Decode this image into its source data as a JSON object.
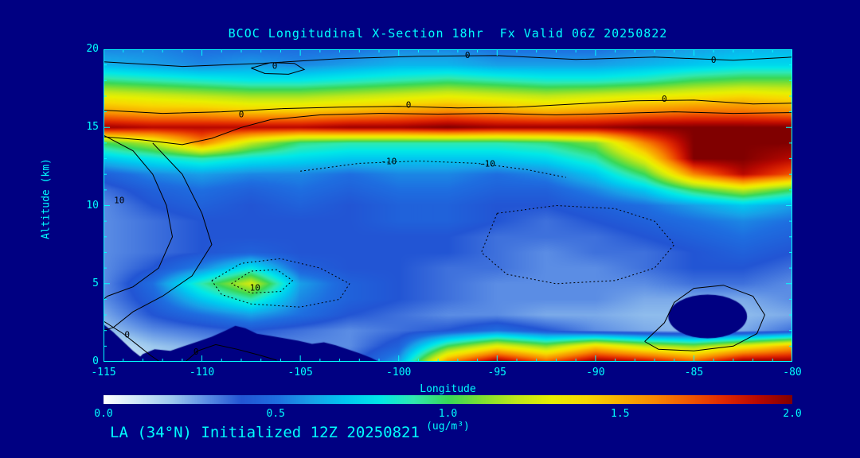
{
  "page": {
    "bg": "#000082",
    "fg": "#00ffff"
  },
  "title": "BCOC Longitudinal X-Section 18hr  Fx Valid 06Z 20250822",
  "caption": "LA (34°N) Initialized 12Z 20250821",
  "axes": {
    "x_label": "Longitude",
    "y_label": "Altitude (km)",
    "x_ticks": [
      -115,
      -110,
      -105,
      -100,
      -95,
      -90,
      -85,
      -80
    ],
    "y_ticks": [
      0,
      5,
      10,
      15,
      20
    ],
    "x_range": [
      -115,
      -80
    ],
    "y_range": [
      0,
      20
    ],
    "x_minor_step": 1,
    "y_minor_step": 1
  },
  "colorbar": {
    "ticks": [
      "0.0",
      "0.5",
      "1.0",
      "1.5",
      "2.0"
    ],
    "tick_values": [
      0,
      0.5,
      1.0,
      1.5,
      2.0
    ],
    "label": "(ug/m³)",
    "min": 0,
    "max": 2
  },
  "chart_data": {
    "type": "heatmap",
    "title": "BCOC Longitudinal X-Section 18hr  Fx Valid 06Z 20250822",
    "xlabel": "Longitude",
    "ylabel": "Altitude (km)",
    "units": "ug/m3",
    "x": [
      -115,
      -112.5,
      -110,
      -107.5,
      -105,
      -102.5,
      -100,
      -97.5,
      -95,
      -92.5,
      -90,
      -87.5,
      -85,
      -82.5,
      -80
    ],
    "y": [
      20,
      19,
      18,
      17,
      16,
      15,
      14,
      13,
      12,
      11,
      10,
      9,
      8,
      7,
      6,
      5,
      4,
      3,
      2,
      1,
      0
    ],
    "values": [
      [
        0.55,
        0.55,
        0.5,
        0.5,
        0.5,
        0.5,
        0.55,
        0.55,
        0.5,
        0.5,
        0.5,
        0.55,
        0.6,
        0.65,
        0.65
      ],
      [
        0.65,
        0.6,
        0.55,
        0.6,
        0.55,
        0.6,
        0.65,
        0.65,
        0.6,
        0.6,
        0.6,
        0.65,
        0.7,
        0.75,
        0.75
      ],
      [
        0.95,
        0.9,
        0.85,
        0.8,
        0.8,
        0.85,
        0.9,
        0.95,
        0.9,
        0.85,
        0.85,
        0.9,
        1.0,
        1.05,
        1.05
      ],
      [
        1.3,
        1.25,
        1.2,
        1.15,
        1.15,
        1.2,
        1.25,
        1.3,
        1.25,
        1.2,
        1.25,
        1.3,
        1.35,
        1.4,
        1.35
      ],
      [
        1.55,
        1.5,
        1.5,
        1.45,
        1.45,
        1.5,
        1.55,
        1.6,
        1.55,
        1.5,
        1.55,
        1.6,
        1.65,
        1.65,
        1.6
      ],
      [
        1.95,
        1.9,
        1.9,
        1.9,
        1.9,
        1.95,
        1.95,
        2.0,
        1.95,
        1.95,
        1.95,
        2.0,
        2.0,
        2.0,
        2.0
      ],
      [
        1.0,
        1.2,
        1.6,
        1.2,
        0.95,
        0.9,
        0.9,
        0.9,
        0.9,
        0.95,
        1.1,
        1.6,
        2.0,
        2.0,
        2.0
      ],
      [
        0.7,
        0.8,
        0.9,
        0.8,
        0.75,
        0.7,
        0.7,
        0.7,
        0.7,
        0.75,
        0.9,
        1.3,
        2.0,
        2.0,
        1.9
      ],
      [
        0.45,
        0.55,
        0.6,
        0.55,
        0.55,
        0.5,
        0.55,
        0.55,
        0.5,
        0.55,
        0.7,
        1.0,
        1.6,
        1.9,
        1.7
      ],
      [
        0.35,
        0.45,
        0.5,
        0.45,
        0.5,
        0.45,
        0.5,
        0.5,
        0.45,
        0.45,
        0.55,
        0.7,
        1.0,
        1.2,
        1.0
      ],
      [
        0.3,
        0.4,
        0.45,
        0.4,
        0.45,
        0.4,
        0.45,
        0.45,
        0.4,
        0.4,
        0.45,
        0.5,
        0.6,
        0.7,
        0.6
      ],
      [
        0.3,
        0.35,
        0.4,
        0.4,
        0.4,
        0.4,
        0.45,
        0.45,
        0.4,
        0.35,
        0.4,
        0.45,
        0.5,
        0.55,
        0.5
      ],
      [
        0.3,
        0.35,
        0.4,
        0.4,
        0.4,
        0.4,
        0.4,
        0.4,
        0.35,
        0.35,
        0.35,
        0.4,
        0.45,
        0.5,
        0.45
      ],
      [
        0.3,
        0.35,
        0.4,
        0.45,
        0.4,
        0.4,
        0.4,
        0.4,
        0.35,
        0.3,
        0.35,
        0.35,
        0.4,
        0.45,
        0.4
      ],
      [
        0.3,
        0.4,
        0.55,
        0.8,
        0.45,
        0.4,
        0.4,
        0.35,
        0.35,
        0.3,
        0.3,
        0.35,
        0.4,
        0.4,
        0.35
      ],
      [
        0.3,
        0.5,
        0.9,
        1.25,
        0.6,
        0.45,
        0.4,
        0.35,
        0.3,
        0.3,
        0.3,
        0.3,
        0.35,
        0.35,
        0.3
      ],
      [
        0.3,
        0.45,
        0.7,
        0.9,
        0.55,
        0.45,
        0.4,
        0.35,
        0.3,
        0.3,
        0.3,
        0.25,
        0.25,
        0.25,
        0.3
      ],
      [
        0.25,
        0.4,
        0.5,
        0.6,
        0.5,
        0.4,
        0.35,
        0.3,
        0.3,
        0.25,
        0.25,
        0.22,
        0.22,
        0.22,
        0.25
      ],
      [
        0.2,
        0.3,
        0.35,
        0.4,
        0.35,
        0.3,
        0.35,
        0.4,
        0.5,
        0.4,
        0.3,
        0.25,
        0.22,
        0.25,
        0.35
      ],
      [
        0.1,
        0.2,
        0.25,
        0.3,
        0.3,
        0.3,
        0.45,
        1.0,
        1.3,
        1.1,
        1.4,
        1.2,
        1.1,
        1.3,
        1.5
      ],
      [
        0.08,
        0.15,
        0.2,
        0.25,
        0.3,
        0.35,
        0.6,
        1.6,
        2.0,
        1.7,
        2.0,
        1.9,
        1.7,
        2.0,
        2.0
      ]
    ],
    "colormap": [
      [
        0.0,
        "#ffffff"
      ],
      [
        0.1,
        "#cfe8f8"
      ],
      [
        0.2,
        "#9cc8ee"
      ],
      [
        0.3,
        "#5b8de4"
      ],
      [
        0.4,
        "#2255d4"
      ],
      [
        0.5,
        "#1e6ee0"
      ],
      [
        0.6,
        "#18a0e8"
      ],
      [
        0.7,
        "#00c8f0"
      ],
      [
        0.8,
        "#00e8e8"
      ],
      [
        0.9,
        "#30e8b0"
      ],
      [
        1.0,
        "#38d858"
      ],
      [
        1.1,
        "#80e030"
      ],
      [
        1.2,
        "#c0e818"
      ],
      [
        1.3,
        "#e8f000"
      ],
      [
        1.4,
        "#f8d800"
      ],
      [
        1.5,
        "#f8b000"
      ],
      [
        1.6,
        "#f88800"
      ],
      [
        1.7,
        "#f05800"
      ],
      [
        1.8,
        "#e02800"
      ],
      [
        1.9,
        "#b80800"
      ],
      [
        2.0,
        "#800000"
      ]
    ],
    "terrain": [
      [
        -113.4,
        0
      ],
      [
        -113.0,
        0.5
      ],
      [
        -112.4,
        0.8
      ],
      [
        -111.6,
        0.7
      ],
      [
        -110.9,
        1.0
      ],
      [
        -110.2,
        1.3
      ],
      [
        -109.5,
        1.6
      ],
      [
        -108.8,
        2.0
      ],
      [
        -108.3,
        2.3
      ],
      [
        -107.8,
        2.15
      ],
      [
        -107.2,
        1.8
      ],
      [
        -106.5,
        1.65
      ],
      [
        -105.8,
        1.5
      ],
      [
        -105.1,
        1.35
      ],
      [
        -104.4,
        1.15
      ],
      [
        -103.8,
        1.25
      ],
      [
        -103.2,
        1.05
      ],
      [
        -102.6,
        0.8
      ],
      [
        -102.0,
        0.55
      ],
      [
        -101.4,
        0.25
      ],
      [
        -101.0,
        0.0
      ]
    ],
    "corner_mask": [
      [
        -115,
        2.4
      ],
      [
        -114.5,
        1.9
      ],
      [
        -114.0,
        1.3
      ],
      [
        -113.5,
        0.7
      ],
      [
        -113.1,
        0.3
      ],
      [
        -112.8,
        0.0
      ],
      [
        -115,
        0.0
      ]
    ],
    "blob_mask": {
      "cx": -84.3,
      "cy": 2.9,
      "rx": 2.0,
      "ry": 1.4
    },
    "contours": [
      {
        "style": "solid",
        "points": [
          [
            -115,
            19.2
          ],
          [
            -111,
            18.9
          ],
          [
            -107,
            19.1
          ],
          [
            -103,
            19.4
          ],
          [
            -99,
            19.55
          ],
          [
            -95,
            19.6
          ],
          [
            -91,
            19.35
          ],
          [
            -87,
            19.5
          ],
          [
            -83,
            19.3
          ],
          [
            -80,
            19.5
          ]
        ]
      },
      {
        "style": "solid",
        "points": [
          [
            -107.5,
            18.8
          ],
          [
            -106.5,
            19.15
          ],
          [
            -105.3,
            19.1
          ],
          [
            -104.8,
            18.7
          ],
          [
            -105.6,
            18.4
          ],
          [
            -106.8,
            18.45
          ],
          [
            -107.5,
            18.8
          ]
        ]
      },
      {
        "style": "solid",
        "points": [
          [
            -115,
            16.1
          ],
          [
            -112,
            15.9
          ],
          [
            -109,
            16.0
          ],
          [
            -106,
            16.2
          ],
          [
            -103,
            16.3
          ],
          [
            -100,
            16.35
          ],
          [
            -97,
            16.25
          ],
          [
            -94,
            16.3
          ],
          [
            -91,
            16.5
          ],
          [
            -88,
            16.7
          ],
          [
            -85,
            16.75
          ],
          [
            -82,
            16.5
          ],
          [
            -80,
            16.55
          ]
        ]
      },
      {
        "style": "solid",
        "points": [
          [
            -115,
            14.4
          ],
          [
            -113,
            14.2
          ],
          [
            -111,
            13.9
          ],
          [
            -109.5,
            14.3
          ],
          [
            -108,
            15.0
          ],
          [
            -106.5,
            15.5
          ],
          [
            -104,
            15.8
          ],
          [
            -101,
            15.9
          ],
          [
            -98,
            15.85
          ],
          [
            -95,
            15.9
          ],
          [
            -92,
            15.8
          ],
          [
            -89,
            15.9
          ],
          [
            -86,
            16.0
          ],
          [
            -83,
            15.9
          ],
          [
            -80,
            15.95
          ]
        ]
      },
      {
        "style": "solid",
        "points": [
          [
            -115,
            14.5
          ],
          [
            -113.5,
            13.5
          ],
          [
            -112.5,
            12.0
          ],
          [
            -111.8,
            10.0
          ],
          [
            -111.5,
            8.0
          ],
          [
            -112.2,
            6.0
          ],
          [
            -113.5,
            4.8
          ],
          [
            -114.8,
            4.2
          ],
          [
            -115,
            4.0
          ]
        ]
      },
      {
        "style": "solid",
        "points": [
          [
            -112.5,
            14.0
          ],
          [
            -111.0,
            12.0
          ],
          [
            -110.0,
            9.5
          ],
          [
            -109.5,
            7.5
          ],
          [
            -110.5,
            5.5
          ],
          [
            -112.0,
            4.2
          ],
          [
            -113.5,
            3.2
          ],
          [
            -114.5,
            2.2
          ],
          [
            -115,
            2.0
          ]
        ]
      },
      {
        "style": "dotted",
        "points": [
          [
            -105,
            12.2
          ],
          [
            -102,
            12.7
          ],
          [
            -99,
            12.85
          ],
          [
            -96,
            12.7
          ],
          [
            -93.5,
            12.3
          ],
          [
            -91.5,
            11.8
          ]
        ]
      },
      {
        "style": "dotted",
        "points": [
          [
            -109.5,
            5.2
          ],
          [
            -108,
            6.3
          ],
          [
            -106,
            6.6
          ],
          [
            -104,
            6.0
          ],
          [
            -102.5,
            5.0
          ],
          [
            -103,
            4.0
          ],
          [
            -105,
            3.5
          ],
          [
            -107.5,
            3.7
          ],
          [
            -109,
            4.3
          ],
          [
            -109.5,
            5.2
          ]
        ]
      },
      {
        "style": "dotted",
        "points": [
          [
            -108.5,
            5.0
          ],
          [
            -107.5,
            5.8
          ],
          [
            -106.2,
            5.9
          ],
          [
            -105.4,
            5.2
          ],
          [
            -106,
            4.5
          ],
          [
            -107.5,
            4.4
          ],
          [
            -108.5,
            5.0
          ]
        ]
      },
      {
        "style": "solid",
        "points": [
          [
            -115,
            2.6
          ],
          [
            -114,
            1.8
          ],
          [
            -113.2,
            1.0
          ],
          [
            -112.6,
            0.4
          ],
          [
            -112.2,
            0.05
          ]
        ]
      },
      {
        "style": "solid",
        "points": [
          [
            -110.8,
            0.05
          ],
          [
            -110.2,
            0.7
          ],
          [
            -109.3,
            1.1
          ],
          [
            -108.2,
            0.8
          ],
          [
            -107,
            0.4
          ],
          [
            -106.2,
            0.1
          ]
        ]
      },
      {
        "style": "solid",
        "points": [
          [
            -87.5,
            1.3
          ],
          [
            -86.5,
            2.5
          ],
          [
            -86,
            3.8
          ],
          [
            -85,
            4.7
          ],
          [
            -83.5,
            4.9
          ],
          [
            -82,
            4.2
          ],
          [
            -81.4,
            3.0
          ],
          [
            -81.8,
            1.8
          ],
          [
            -83,
            1.0
          ],
          [
            -85,
            0.7
          ],
          [
            -86.8,
            0.8
          ],
          [
            -87.5,
            1.3
          ]
        ]
      },
      {
        "style": "dotted",
        "points": [
          [
            -95,
            9.5
          ],
          [
            -92,
            10.0
          ],
          [
            -89,
            9.8
          ],
          [
            -87,
            9.0
          ],
          [
            -86,
            7.5
          ],
          [
            -87,
            6.0
          ],
          [
            -89,
            5.2
          ],
          [
            -92,
            5.0
          ],
          [
            -94.5,
            5.6
          ],
          [
            -95.8,
            7.0
          ],
          [
            -95,
            9.5
          ]
        ]
      }
    ],
    "contour_labels": [
      {
        "text": "0",
        "lon": -96.5,
        "alt": 19.6
      },
      {
        "text": "0",
        "lon": -84,
        "alt": 19.3
      },
      {
        "text": "0",
        "lon": -106.3,
        "alt": 18.9
      },
      {
        "text": "0",
        "lon": -99.5,
        "alt": 16.4
      },
      {
        "text": "0",
        "lon": -86.5,
        "alt": 16.8
      },
      {
        "text": "0",
        "lon": -108,
        "alt": 15.8
      },
      {
        "text": "10",
        "lon": -114.2,
        "alt": 10.3
      },
      {
        "text": "-10",
        "lon": -100.5,
        "alt": 12.8
      },
      {
        "text": "-10",
        "lon": -95.5,
        "alt": 12.65
      },
      {
        "text": "10",
        "lon": -107.3,
        "alt": 4.7
      },
      {
        "text": "0",
        "lon": -113.8,
        "alt": 1.7
      },
      {
        "text": "0",
        "lon": -110.3,
        "alt": 0.6
      }
    ]
  }
}
